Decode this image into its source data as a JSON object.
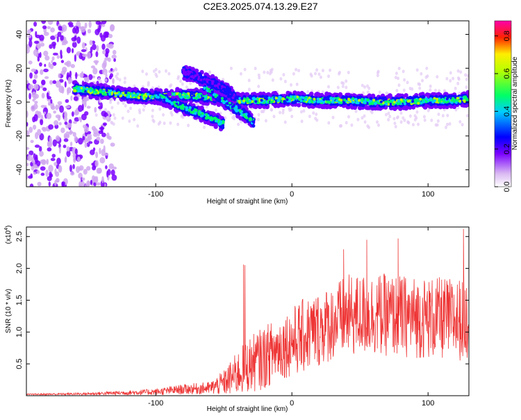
{
  "title": "C2E3.2025.074.13.29.E27",
  "colors": {
    "snr_line": "#ee3333",
    "colormap": [
      "#ffffff",
      "#e0c8f0",
      "#7a00ff",
      "#0000ff",
      "#00ccff",
      "#00ff66",
      "#ffee00",
      "#ff2200",
      "#ff00aa"
    ]
  },
  "chart_data": [
    {
      "type": "heatmap",
      "x_label": "Height of straight line (km)",
      "y_label": "Frequency (Hz)",
      "x_range": [
        -195,
        130
      ],
      "y_range": [
        -50,
        48
      ],
      "x_ticks": [
        -100,
        0,
        100
      ],
      "x_tick_labels": [
        "-100",
        "0",
        "100"
      ],
      "y_ticks": [
        -40,
        -20,
        0,
        20,
        40
      ],
      "y_tick_labels": [
        "-40",
        "-20",
        "0",
        "20",
        "40"
      ],
      "colorbar": {
        "label": "Normalized spectral amplitude",
        "range": [
          0,
          0.88
        ],
        "ticks": [
          0.0,
          0.2,
          0.4,
          0.6,
          0.8
        ],
        "tick_labels": [
          "0.0",
          "0.2",
          "0.4",
          "0.6",
          "0.8"
        ]
      },
      "ridges": [
        {
          "name": "main",
          "x": [
            -160,
            -140,
            -120,
            -100,
            -80,
            -60,
            -40,
            -20,
            0,
            20,
            40,
            60,
            80,
            100,
            120,
            130
          ],
          "y": [
            8,
            6,
            4,
            3,
            4,
            3,
            1,
            1,
            2,
            1,
            1,
            0,
            0,
            1,
            1,
            2
          ],
          "amplitude": 0.55
        },
        {
          "name": "branch-1",
          "x": [
            -100,
            -90,
            -80,
            -70,
            -60,
            -50
          ],
          "y": [
            4,
            1,
            -3,
            -6,
            -9,
            -13
          ],
          "amplitude": 0.5
        },
        {
          "name": "branch-2",
          "x": [
            -65,
            -55,
            -45,
            -35,
            -28
          ],
          "y": [
            10,
            4,
            -2,
            -7,
            -12
          ],
          "amplitude": 0.45
        },
        {
          "name": "branch-3",
          "x": [
            -80,
            -70,
            -60,
            -50,
            -42
          ],
          "y": [
            18,
            15,
            12,
            8,
            3
          ],
          "amplitude": 0.3
        }
      ],
      "noise_region": {
        "x": [
          -195,
          -145
        ],
        "y": [
          -50,
          48
        ],
        "amplitude": 0.25
      }
    },
    {
      "type": "line",
      "x_label": "Height of straight line (km)",
      "y_label": "SNR (10 * v/v)",
      "y_scale_label": "(x10",
      "y_scale_exponent": "4",
      "x_range": [
        -195,
        130
      ],
      "y_range": [
        0,
        2.65
      ],
      "x_ticks": [
        -100,
        0,
        100
      ],
      "x_tick_labels": [
        "-100",
        "0",
        "100"
      ],
      "y_ticks": [
        0.5,
        1.0,
        1.5,
        2.0,
        2.5
      ],
      "y_tick_labels": [
        "0.5",
        "1.0",
        "1.5",
        "2.0",
        "2.5"
      ],
      "envelope": {
        "x": [
          -195,
          -150,
          -100,
          -80,
          -60,
          -50,
          -40,
          -30,
          -20,
          -10,
          0,
          10,
          20,
          30,
          40,
          60,
          80,
          100,
          120,
          130
        ],
        "mean": [
          0.02,
          0.03,
          0.06,
          0.1,
          0.12,
          0.2,
          0.35,
          0.5,
          0.6,
          0.75,
          0.85,
          0.95,
          1.05,
          1.15,
          1.25,
          1.28,
          1.25,
          1.22,
          1.2,
          1.2
        ],
        "spread": [
          0.01,
          0.02,
          0.05,
          0.08,
          0.1,
          0.2,
          0.35,
          0.45,
          0.5,
          0.5,
          0.55,
          0.6,
          0.6,
          0.6,
          0.65,
          0.65,
          0.65,
          0.65,
          0.65,
          0.65
        ]
      },
      "peaks": [
        {
          "x": -35.5,
          "y": 2.06
        },
        {
          "x": -34.5,
          "y": 2.05
        },
        {
          "x": 38,
          "y": 2.3
        },
        {
          "x": 55,
          "y": 2.45
        },
        {
          "x": 78,
          "y": 2.47
        },
        {
          "x": 126,
          "y": 2.62
        }
      ]
    }
  ]
}
